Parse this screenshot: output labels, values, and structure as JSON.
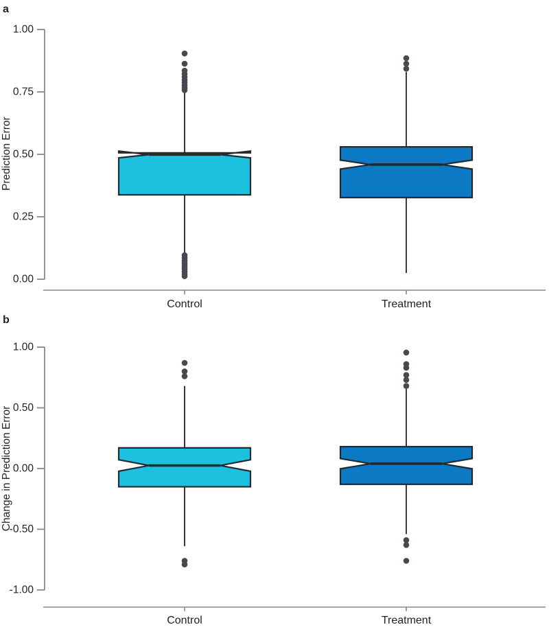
{
  "style": {
    "background": "#FFFFFF",
    "box_stroke": "#24292E",
    "median_color": "#24292E",
    "whisker_color": "#2A2E33",
    "outlier_color": "#46494D",
    "axis_color": "#85878A",
    "text_color": "#231F20",
    "control_fill": "#1CC1DF",
    "treatment_fill": "#0B79C3"
  },
  "chart_data": [
    {
      "type": "box",
      "panel_label": "a",
      "ylabel": "Prediction Error",
      "xlabel": "",
      "ylim": [
        0,
        1
      ],
      "grid": false,
      "legend": "none",
      "yticks": [
        {
          "value": 1.0,
          "label": "1.00"
        },
        {
          "value": 0.75,
          "label": "0.75"
        },
        {
          "value": 0.5,
          "label": "0.50"
        },
        {
          "value": 0.25,
          "label": "0.25"
        },
        {
          "value": 0.0,
          "label": "0.00"
        }
      ],
      "categories": [
        "Control",
        "Treatment"
      ],
      "series": [
        {
          "name": "Control",
          "color": "#1CC1DF",
          "whisker_low": 0.107,
          "q1": 0.338,
          "median": 0.499,
          "q3": 0.506,
          "whisker_high": 0.752,
          "notch_low": 0.486,
          "notch_high": 0.513,
          "outliers_high": [
            0.904,
            0.863,
            0.835,
            0.822,
            0.81,
            0.798,
            0.787,
            0.776,
            0.766,
            0.757
          ],
          "outliers_low": [
            0.096,
            0.085,
            0.075,
            0.066,
            0.057,
            0.049,
            0.041,
            0.03,
            0.02,
            0.012
          ]
        },
        {
          "name": "Treatment",
          "color": "#0B79C3",
          "whisker_low": 0.025,
          "q1": 0.327,
          "median": 0.459,
          "q3": 0.53,
          "whisker_high": 0.83,
          "notch_low": 0.441,
          "notch_high": 0.477,
          "outliers_high": [
            0.885,
            0.863,
            0.843
          ],
          "outliers_low": []
        }
      ]
    },
    {
      "type": "box",
      "panel_label": "b",
      "ylabel": "Change in Prediction Error",
      "xlabel": "",
      "ylim": [
        -1,
        1
      ],
      "grid": false,
      "legend": "none",
      "yticks": [
        {
          "value": 1.0,
          "label": "1.00"
        },
        {
          "value": 0.5,
          "label": "0.50"
        },
        {
          "value": 0.0,
          "label": "0.00"
        },
        {
          "value": -0.5,
          "label": "-0.50"
        },
        {
          "value": -1.0,
          "label": "-1.00"
        }
      ],
      "categories": [
        "Control",
        "Treatment"
      ],
      "series": [
        {
          "name": "Control",
          "color": "#1CC1DF",
          "whisker_low": -0.64,
          "q1": -0.15,
          "median": 0.025,
          "q3": 0.17,
          "whisker_high": 0.68,
          "notch_low": -0.022,
          "notch_high": 0.072,
          "outliers_high": [
            0.87,
            0.8,
            0.76
          ],
          "outliers_low": [
            -0.76,
            -0.79
          ]
        },
        {
          "name": "Treatment",
          "color": "#0B79C3",
          "whisker_low": -0.54,
          "q1": -0.13,
          "median": 0.04,
          "q3": 0.18,
          "whisker_high": 0.655,
          "notch_low": -0.002,
          "notch_high": 0.082,
          "outliers_high": [
            0.955,
            0.86,
            0.83,
            0.77,
            0.73,
            0.68
          ],
          "outliers_low": [
            -0.59,
            -0.63,
            -0.76
          ]
        }
      ]
    }
  ]
}
